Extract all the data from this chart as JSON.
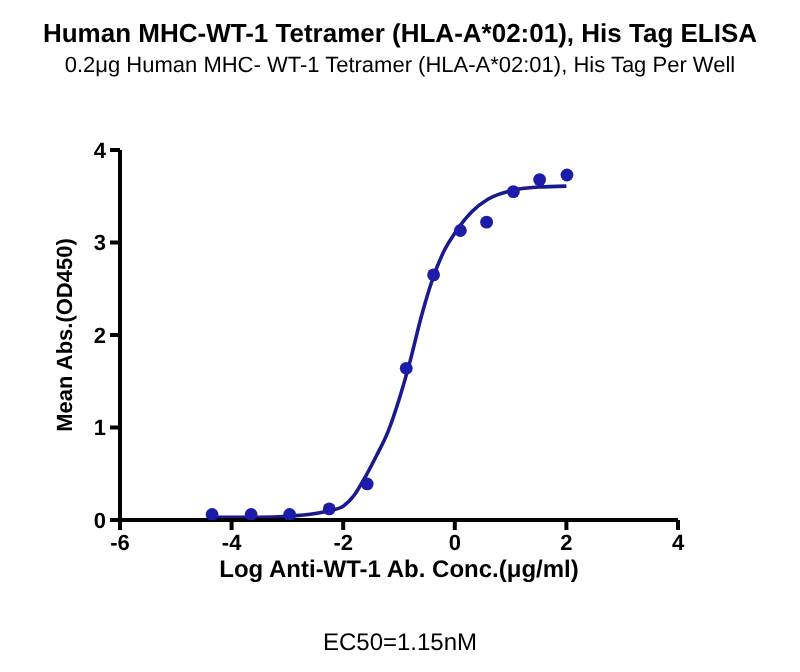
{
  "chart_data": {
    "type": "scatter",
    "title": "Human MHC-WT-1 Tetramer (HLA-A*02:01), His Tag ELISA",
    "subtitle": "0.2μg Human MHC- WT-1 Tetramer (HLA-A*02:01), His Tag Per Well",
    "xlabel": "Log Anti-WT-1 Ab. Conc.(μg/ml)",
    "ylabel": "Mean Abs.(OD450)",
    "annotations": [
      "EC50=1.15nM"
    ],
    "xlim": [
      -6,
      4
    ],
    "xticks": [
      -6,
      -4,
      -2,
      0,
      2,
      4
    ],
    "ylim": [
      0,
      4
    ],
    "yticks": [
      0,
      1,
      2,
      3,
      4
    ],
    "grid": false,
    "series": [
      {
        "marker": "circle",
        "color": "#1c1ca8",
        "x": [
          -4.35,
          -3.65,
          -2.96,
          -2.25,
          -1.57,
          -0.87,
          -0.38,
          0.1,
          0.57,
          1.05,
          1.52,
          2.01
        ],
        "values": [
          0.06,
          0.06,
          0.06,
          0.12,
          0.39,
          1.64,
          2.65,
          3.13,
          3.22,
          3.55,
          3.68,
          3.73
        ]
      },
      {
        "type": "line",
        "marker": "none",
        "color": "#1a1a8c",
        "x": [
          -4.35,
          -3.5,
          -3,
          -2.5,
          -2.25,
          -2,
          -1.8,
          -1.6,
          -1.4,
          -1.2,
          -1,
          -0.8,
          -0.6,
          -0.4,
          -0.2,
          0,
          0.3,
          0.6,
          1,
          1.5,
          2
        ],
        "values": [
          0.03,
          0.03,
          0.04,
          0.07,
          0.1,
          0.15,
          0.27,
          0.47,
          0.7,
          0.95,
          1.3,
          1.72,
          2.2,
          2.6,
          2.9,
          3.1,
          3.33,
          3.47,
          3.56,
          3.6,
          3.61
        ]
      }
    ]
  }
}
